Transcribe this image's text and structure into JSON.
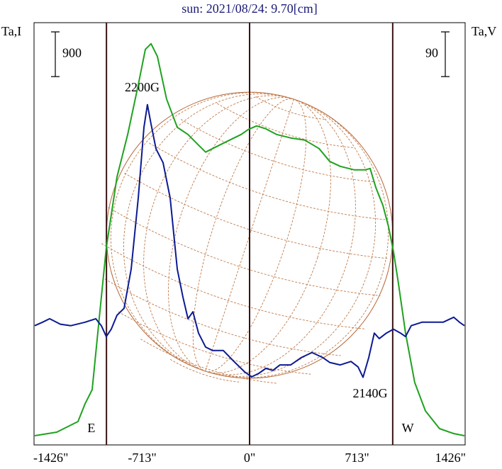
{
  "chart_data": {
    "type": "line",
    "title": "sun: 2021/08/24: 9.70[cm]",
    "y_label": "Ta,I",
    "y2_label": "Ta,V",
    "xlim": [
      -1426,
      1426
    ],
    "xticks": [
      {
        "value": -1426,
        "label": "-1426\""
      },
      {
        "value": -713,
        "label": "-713\""
      },
      {
        "value": 0,
        "label": "0\""
      },
      {
        "value": 713,
        "label": "713\""
      },
      {
        "value": 1426,
        "label": "1426\""
      }
    ],
    "ylim": [
      0,
      8500
    ],
    "y2lim": [
      -240,
      610
    ],
    "scale_bar": {
      "value": 900,
      "label": "900"
    },
    "scale_bar2": {
      "value": 90,
      "label": "90"
    },
    "sun_radius": 950,
    "vlines": [
      -950,
      0,
      950
    ],
    "annotations": [
      {
        "text": "2200G",
        "x": -713
      },
      {
        "text": "2140G",
        "x": 800
      },
      {
        "text": "E",
        "x": -1050
      },
      {
        "text": "W",
        "x": 1050
      }
    ],
    "series": [
      {
        "color": "#1fa21f",
        "x": [
          -1426,
          -1280,
          -1139,
          -1092,
          -1045,
          -998,
          -951,
          -880,
          -809,
          -739,
          -692,
          -654,
          -612,
          -551,
          -480,
          -409,
          -339,
          -292,
          -245,
          -151,
          -56,
          -9,
          47,
          108,
          179,
          273,
          367,
          461,
          532,
          602,
          696,
          767,
          800,
          838,
          885,
          922,
          955,
          988,
          1035,
          1096,
          1167,
          1261,
          1355,
          1426
        ],
        "values": [
          186,
          257,
          471,
          828,
          1113,
          2540,
          3967,
          5394,
          6250,
          7249,
          7963,
          8077,
          7820,
          6964,
          6393,
          6250,
          6036,
          5894,
          5965,
          6108,
          6250,
          6350,
          6422,
          6364,
          6250,
          6179,
          6136,
          5965,
          5708,
          5608,
          5537,
          5537,
          5565,
          5180,
          4823,
          4395,
          3896,
          3254,
          2255,
          1256,
          685,
          328,
          228,
          186
        ]
      },
      {
        "color": "#0c1a92",
        "axis": "y2",
        "x": [
          -1426,
          -1374,
          -1327,
          -1256,
          -1186,
          -1092,
          -1021,
          -984,
          -951,
          -918,
          -880,
          -833,
          -786,
          -739,
          -701,
          -678,
          -654,
          -621,
          -574,
          -527,
          -480,
          -442,
          -409,
          -376,
          -339,
          -292,
          -245,
          -174,
          -104,
          -33,
          14,
          61,
          108,
          155,
          202,
          273,
          344,
          414,
          485,
          532,
          602,
          673,
          720,
          753,
          791,
          828,
          861,
          908,
          955,
          1002,
          1035,
          1073,
          1144,
          1214,
          1285,
          1355,
          1393,
          1426
        ],
        "values": [
          0,
          7,
          14,
          3,
          0,
          7,
          14,
          0,
          -22,
          -7,
          21,
          35,
          114,
          257,
          399,
          445,
          406,
          356,
          328,
          257,
          114,
          57,
          14,
          28,
          -15,
          -43,
          -50,
          -50,
          -72,
          -93,
          -103,
          -96,
          -86,
          -90,
          -79,
          -79,
          -64,
          -54,
          -64,
          -74,
          -79,
          -72,
          -83,
          -104,
          -64,
          -15,
          -26,
          -15,
          -7,
          -15,
          -22,
          0,
          7,
          7,
          7,
          17,
          7,
          0
        ]
      }
    ]
  }
}
